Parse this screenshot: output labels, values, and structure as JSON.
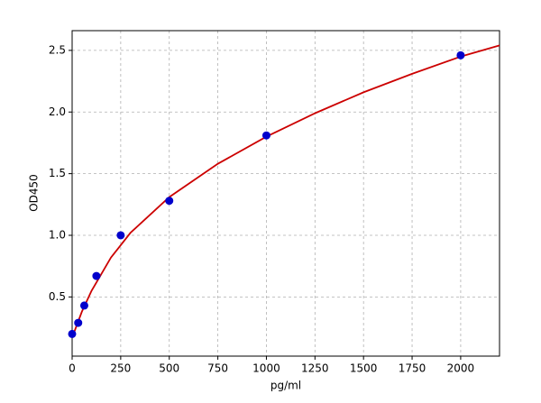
{
  "chart_data": {
    "type": "scatter",
    "x_label": "pg/ml",
    "y_label": "OD450",
    "xlim": [
      0,
      2200
    ],
    "ylim": [
      0.02,
      2.66
    ],
    "xticks": [
      0,
      250,
      500,
      750,
      1000,
      1250,
      1500,
      1750,
      2000
    ],
    "yticks": [
      0.5,
      {
        "value": 1,
        "label": "1.0"
      },
      1.5,
      {
        "value": 2,
        "label": "2.0"
      },
      2.5
    ],
    "grid": true,
    "series": [
      {
        "type": "scatter",
        "color": "#0000cc",
        "x": [
          0,
          31.25,
          62.5,
          125,
          250,
          500,
          1000,
          2000
        ],
        "values": [
          0.2,
          0.29,
          0.43,
          0.67,
          1.0,
          1.28,
          1.81,
          2.46
        ]
      },
      {
        "type": "line",
        "color": "#cc0000",
        "x": [
          0,
          50,
          100,
          200,
          300,
          500,
          750,
          1000,
          1250,
          1500,
          1750,
          2000,
          2200
        ],
        "values": [
          0.17,
          0.38,
          0.55,
          0.82,
          1.02,
          1.31,
          1.58,
          1.8,
          1.99,
          2.16,
          2.31,
          2.45,
          2.54
        ]
      }
    ]
  }
}
